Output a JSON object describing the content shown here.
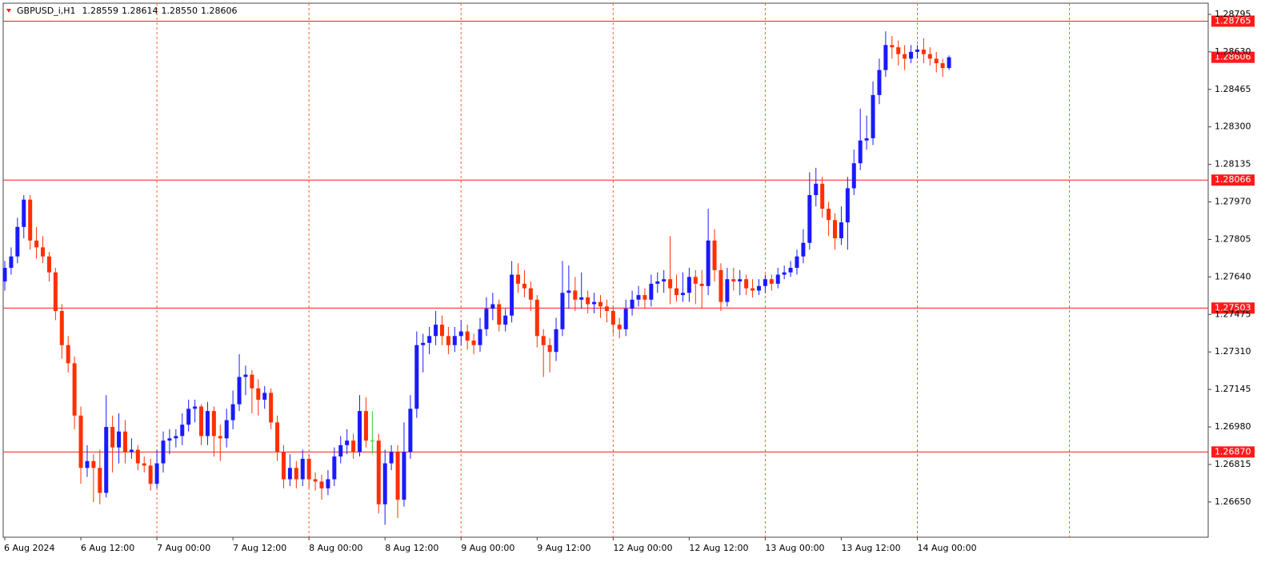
{
  "chart_data": {
    "type": "candlestick",
    "title": "GBPUSD_i,H1",
    "header_values": [
      "1.28559",
      "1.28614",
      "1.28550",
      "1.28606"
    ],
    "ylim": [
      1.26495,
      1.28844
    ],
    "yticks": [
      1.28795,
      {
        "value": 1.2863,
        "label": "1.28630"
      },
      1.28465,
      {
        "value": 1.283,
        "label": "1.28300"
      },
      1.28135,
      {
        "value": 1.2797,
        "label": "1.27970"
      },
      1.27805,
      {
        "value": 1.2764,
        "label": "1.27640"
      },
      1.27475,
      {
        "value": 1.2731,
        "label": "1.27310"
      },
      1.27145,
      {
        "value": 1.2698,
        "label": "1.26980"
      },
      1.26815,
      {
        "value": 1.2665,
        "label": "1.26650"
      }
    ],
    "time_labels": [
      "6 Aug 2024",
      "6 Aug 12:00",
      "7 Aug 00:00",
      "7 Aug 12:00",
      "8 Aug 00:00",
      "8 Aug 12:00",
      "9 Aug 00:00",
      "9 Aug 12:00",
      "12 Aug 00:00",
      "12 Aug 12:00",
      "13 Aug 00:00",
      "13 Aug 12:00",
      "14 Aug 00:00"
    ],
    "levels": [
      1.28765,
      1.28066,
      1.27503,
      {
        "value": 1.2687,
        "label": "1.26870"
      }
    ],
    "current_price": 1.28606,
    "grid": true,
    "up_color": "#1a1aff",
    "down_color": "#ff3000",
    "doji_color": "#33cc33",
    "level_color": "#ff1a1a",
    "grid_color": "#ff5a30",
    "candles": [
      [
        1.2762,
        1.2771,
        1.2758,
        1.2768
      ],
      [
        1.2768,
        1.2777,
        1.2765,
        1.2773
      ],
      [
        1.2773,
        1.279,
        1.277,
        1.2786
      ],
      [
        1.2786,
        1.28,
        1.2781,
        1.2798
      ],
      [
        1.2798,
        1.28,
        1.2776,
        1.278
      ],
      [
        1.278,
        1.2786,
        1.2772,
        1.2777
      ],
      [
        1.2777,
        1.2782,
        1.277,
        1.2773
      ],
      [
        1.2773,
        1.2775,
        1.2762,
        1.2766
      ],
      [
        1.2766,
        1.2768,
        1.2745,
        1.2749
      ],
      [
        1.2749,
        1.2752,
        1.2728,
        1.2734
      ],
      [
        1.2734,
        1.2738,
        1.2722,
        1.2726
      ],
      [
        1.2726,
        1.2729,
        1.2697,
        1.2703
      ],
      [
        1.2703,
        1.2707,
        1.2673,
        1.268
      ],
      [
        1.268,
        1.269,
        1.2676,
        1.2683
      ],
      [
        1.2683,
        1.2686,
        1.2665,
        1.268
      ],
      [
        1.268,
        1.2688,
        1.2664,
        1.2669
      ],
      [
        1.2669,
        1.2712,
        1.2667,
        1.2698
      ],
      [
        1.2698,
        1.2703,
        1.2678,
        1.2689
      ],
      [
        1.2689,
        1.2704,
        1.2682,
        1.2696
      ],
      [
        1.2696,
        1.2701,
        1.2682,
        1.2687
      ],
      [
        1.2687,
        1.2693,
        1.2684,
        1.2688
      ],
      [
        1.2688,
        1.269,
        1.2679,
        1.2682
      ],
      [
        1.2682,
        1.2685,
        1.2678,
        1.2681
      ],
      [
        1.2681,
        1.2684,
        1.267,
        1.2673
      ],
      [
        1.2673,
        1.2688,
        1.2671,
        1.2682
      ],
      [
        1.2682,
        1.2696,
        1.2678,
        1.2692
      ],
      [
        1.2692,
        1.2697,
        1.2686,
        1.2693
      ],
      [
        1.2693,
        1.2697,
        1.2689,
        1.2694
      ],
      [
        1.2694,
        1.2704,
        1.269,
        1.2699
      ],
      [
        1.2699,
        1.271,
        1.2696,
        1.2706
      ],
      [
        1.2706,
        1.271,
        1.27,
        1.2707
      ],
      [
        1.2707,
        1.2708,
        1.269,
        1.2694
      ],
      [
        1.2694,
        1.2709,
        1.269,
        1.2705
      ],
      [
        1.2705,
        1.2707,
        1.2685,
        1.2694
      ],
      [
        1.2694,
        1.2699,
        1.2683,
        1.2693
      ],
      [
        1.2693,
        1.2706,
        1.2689,
        1.2701
      ],
      [
        1.2701,
        1.2714,
        1.2697,
        1.2708
      ],
      [
        1.2708,
        1.273,
        1.2705,
        1.272
      ],
      [
        1.272,
        1.2725,
        1.2712,
        1.2721
      ],
      [
        1.2721,
        1.2723,
        1.2704,
        1.2715
      ],
      [
        1.2715,
        1.2719,
        1.2703,
        1.271
      ],
      [
        1.271,
        1.2716,
        1.2706,
        1.2713
      ],
      [
        1.2713,
        1.2715,
        1.2697,
        1.27
      ],
      [
        1.27,
        1.2703,
        1.2683,
        1.2687
      ],
      [
        1.2687,
        1.269,
        1.2671,
        1.2675
      ],
      [
        1.2675,
        1.2686,
        1.2672,
        1.268
      ],
      [
        1.268,
        1.2683,
        1.2671,
        1.2675
      ],
      [
        1.2675,
        1.2688,
        1.2672,
        1.2684
      ],
      [
        1.2684,
        1.2686,
        1.2671,
        1.2675
      ],
      [
        1.2675,
        1.2678,
        1.267,
        1.2674
      ],
      [
        1.2674,
        1.2677,
        1.2666,
        1.2671
      ],
      [
        1.2671,
        1.2679,
        1.2668,
        1.2675
      ],
      [
        1.2675,
        1.2689,
        1.2672,
        1.2685
      ],
      [
        1.2685,
        1.2694,
        1.2682,
        1.269
      ],
      [
        1.269,
        1.2697,
        1.2686,
        1.2692
      ],
      [
        1.2692,
        1.2695,
        1.2684,
        1.2687
      ],
      [
        1.2687,
        1.2712,
        1.2685,
        1.2705
      ],
      [
        1.2705,
        1.2711,
        1.2689,
        1.2692
      ],
      [
        1.2692,
        1.2705,
        1.2686,
        1.2692
      ],
      [
        1.2692,
        1.2695,
        1.266,
        1.2664
      ],
      [
        1.2664,
        1.2688,
        1.2655,
        1.2682
      ],
      [
        1.2682,
        1.269,
        1.2679,
        1.2687
      ],
      [
        1.2687,
        1.269,
        1.2658,
        1.2666
      ],
      [
        1.2666,
        1.27,
        1.2663,
        1.2687
      ],
      [
        1.2687,
        1.2712,
        1.2684,
        1.2706
      ],
      [
        1.2706,
        1.274,
        1.2702,
        1.2734
      ],
      [
        1.2734,
        1.2739,
        1.2722,
        1.2735
      ],
      [
        1.2735,
        1.2742,
        1.273,
        1.2738
      ],
      [
        1.2738,
        1.2749,
        1.2734,
        1.2743
      ],
      [
        1.2743,
        1.2747,
        1.2734,
        1.2738
      ],
      [
        1.2738,
        1.2742,
        1.273,
        1.2734
      ],
      [
        1.2734,
        1.2742,
        1.2731,
        1.2738
      ],
      [
        1.2738,
        1.2745,
        1.2734,
        1.274
      ],
      [
        1.274,
        1.2743,
        1.2732,
        1.2736
      ],
      [
        1.2736,
        1.2739,
        1.273,
        1.2734
      ],
      [
        1.2734,
        1.2746,
        1.2731,
        1.2741
      ],
      [
        1.2741,
        1.2755,
        1.2738,
        1.275
      ],
      [
        1.275,
        1.2757,
        1.2745,
        1.2752
      ],
      [
        1.2752,
        1.2754,
        1.274,
        1.2743
      ],
      [
        1.2743,
        1.275,
        1.274,
        1.2747
      ],
      [
        1.2747,
        1.2771,
        1.2744,
        1.2765
      ],
      [
        1.2765,
        1.277,
        1.2757,
        1.2761
      ],
      [
        1.2761,
        1.2767,
        1.2755,
        1.2759
      ],
      [
        1.2759,
        1.2762,
        1.2749,
        1.2754
      ],
      [
        1.2754,
        1.2756,
        1.2733,
        1.2738
      ],
      [
        1.2738,
        1.2741,
        1.272,
        1.2734
      ],
      [
        1.2734,
        1.2737,
        1.2722,
        1.2731
      ],
      [
        1.2731,
        1.2746,
        1.2727,
        1.2741
      ],
      [
        1.2741,
        1.2771,
        1.2738,
        1.2757
      ],
      [
        1.2757,
        1.2769,
        1.275,
        1.2758
      ],
      [
        1.2758,
        1.2764,
        1.2749,
        1.2754
      ],
      [
        1.2754,
        1.2766,
        1.275,
        1.2755
      ],
      [
        1.2755,
        1.2758,
        1.2748,
        1.2752
      ],
      [
        1.2752,
        1.2757,
        1.2748,
        1.2753
      ],
      [
        1.2753,
        1.2756,
        1.2746,
        1.2751
      ],
      [
        1.2751,
        1.2754,
        1.2744,
        1.2749
      ],
      [
        1.2749,
        1.2751,
        1.2739,
        1.2743
      ],
      [
        1.2743,
        1.2746,
        1.2737,
        1.2741
      ],
      [
        1.2741,
        1.2754,
        1.2738,
        1.275
      ],
      [
        1.275,
        1.2758,
        1.2747,
        1.2754
      ],
      [
        1.2754,
        1.276,
        1.2751,
        1.2756
      ],
      [
        1.2756,
        1.2759,
        1.275,
        1.2754
      ],
      [
        1.2754,
        1.2765,
        1.2751,
        1.2761
      ],
      [
        1.2761,
        1.2766,
        1.2757,
        1.2762
      ],
      [
        1.2762,
        1.2767,
        1.2757,
        1.2763
      ],
      [
        1.2763,
        1.2782,
        1.2752,
        1.2759
      ],
      [
        1.2759,
        1.2765,
        1.2753,
        1.2756
      ],
      [
        1.2756,
        1.2766,
        1.2753,
        1.2757
      ],
      [
        1.2757,
        1.2768,
        1.2753,
        1.2764
      ],
      [
        1.2764,
        1.2767,
        1.2752,
        1.2761
      ],
      [
        1.2761,
        1.2767,
        1.275,
        1.276
      ],
      [
        1.276,
        1.2794,
        1.2756,
        1.278
      ],
      [
        1.278,
        1.2785,
        1.2762,
        1.2767
      ],
      [
        1.2767,
        1.277,
        1.2749,
        1.2753
      ],
      [
        1.2753,
        1.2768,
        1.2751,
        1.2763
      ],
      [
        1.2763,
        1.2768,
        1.2758,
        1.2762
      ],
      [
        1.2762,
        1.2767,
        1.2756,
        1.2763
      ],
      [
        1.2763,
        1.2765,
        1.2756,
        1.2759
      ],
      [
        1.2759,
        1.2763,
        1.2755,
        1.2758
      ],
      [
        1.2758,
        1.2763,
        1.2756,
        1.276
      ],
      [
        1.276,
        1.2765,
        1.2757,
        1.2763
      ],
      [
        1.2763,
        1.2765,
        1.2758,
        1.2761
      ],
      [
        1.2761,
        1.2768,
        1.2759,
        1.2765
      ],
      [
        1.2765,
        1.2769,
        1.2763,
        1.2766
      ],
      [
        1.2766,
        1.2771,
        1.2764,
        1.2768
      ],
      [
        1.2768,
        1.2776,
        1.2765,
        1.2773
      ],
      [
        1.2773,
        1.2785,
        1.277,
        1.2779
      ],
      [
        1.2779,
        1.281,
        1.2776,
        1.28
      ],
      [
        1.28,
        1.2812,
        1.2795,
        1.2805
      ],
      [
        1.2805,
        1.2808,
        1.279,
        1.2794
      ],
      [
        1.2794,
        1.2797,
        1.2782,
        1.2789
      ],
      [
        1.2789,
        1.2792,
        1.2776,
        1.2781
      ],
      [
        1.2781,
        1.2795,
        1.2778,
        1.2788
      ],
      [
        1.2788,
        1.2808,
        1.2776,
        1.2803
      ],
      [
        1.2803,
        1.282,
        1.28,
        1.2814
      ],
      [
        1.2814,
        1.2838,
        1.2811,
        1.2824
      ],
      [
        1.2824,
        1.2835,
        1.282,
        1.2825
      ],
      [
        1.2825,
        1.285,
        1.2822,
        1.2844
      ],
      [
        1.2844,
        1.286,
        1.284,
        1.2855
      ],
      [
        1.2855,
        1.2872,
        1.2852,
        1.2866
      ],
      [
        1.2866,
        1.287,
        1.286,
        1.2865
      ],
      [
        1.2865,
        1.2868,
        1.2857,
        1.2862
      ],
      [
        1.2862,
        1.2866,
        1.2855,
        1.286
      ],
      [
        1.286,
        1.2866,
        1.2858,
        1.2863
      ],
      [
        1.2863,
        1.2866,
        1.286,
        1.2864
      ],
      [
        1.2864,
        1.2869,
        1.2858,
        1.2862
      ],
      [
        1.2862,
        1.2865,
        1.2857,
        1.286
      ],
      [
        1.286,
        1.2863,
        1.2854,
        1.2858
      ],
      [
        1.2858,
        1.286,
        1.2852,
        1.28559
      ],
      [
        1.28559,
        1.28614,
        1.2855,
        1.28606
      ]
    ]
  }
}
